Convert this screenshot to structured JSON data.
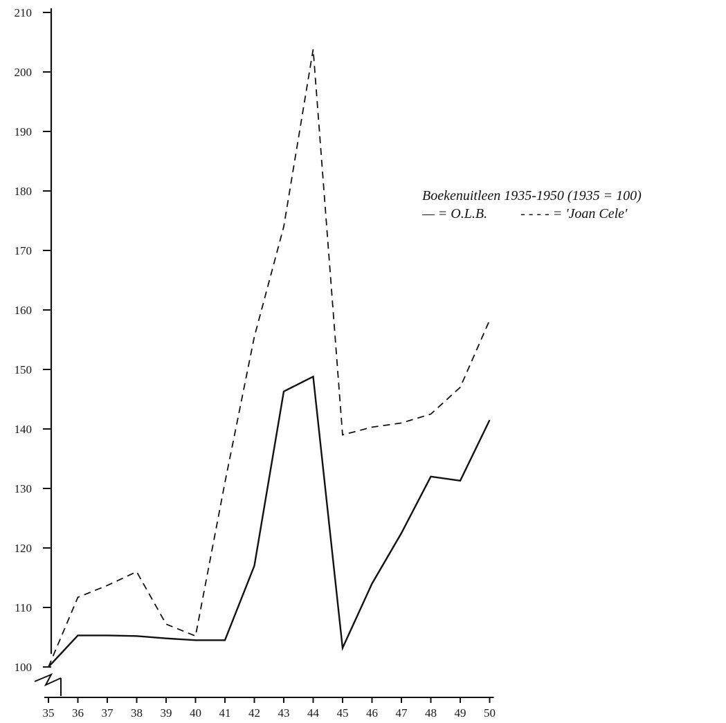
{
  "chart_data": {
    "type": "line",
    "title": "Boekenuitleen 1935-1950 (1935 = 100)",
    "legend": {
      "olb_key": "— = O.L.B.",
      "joan_key": "- - - - = 'Joan Cele'",
      "placement": "right"
    },
    "x": [
      "35",
      "36",
      "37",
      "38",
      "39",
      "40",
      "41",
      "42",
      "43",
      "44",
      "45",
      "46",
      "47",
      "48",
      "49",
      "50"
    ],
    "yticks": [
      100,
      110,
      120,
      130,
      140,
      150,
      160,
      170,
      180,
      190,
      200,
      210
    ],
    "ylim": [
      96,
      212
    ],
    "grid": false,
    "y_axis_break": true,
    "series": [
      {
        "name": "O.L.B.",
        "style": "solid",
        "color": "#111111",
        "values": [
          100,
          105.3,
          105.3,
          105.2,
          104.8,
          104.5,
          104.5,
          117,
          146.3,
          148.8,
          103.2,
          114,
          122.5,
          132,
          131.3,
          141.5
        ]
      },
      {
        "name": "'Joan Cele'",
        "style": "dashed",
        "color": "#111111",
        "values": [
          100,
          111.7,
          113.7,
          116,
          107.2,
          105.2,
          131,
          155.5,
          174,
          203.8,
          139,
          140.3,
          141,
          142.5,
          147,
          158.3
        ]
      }
    ]
  }
}
